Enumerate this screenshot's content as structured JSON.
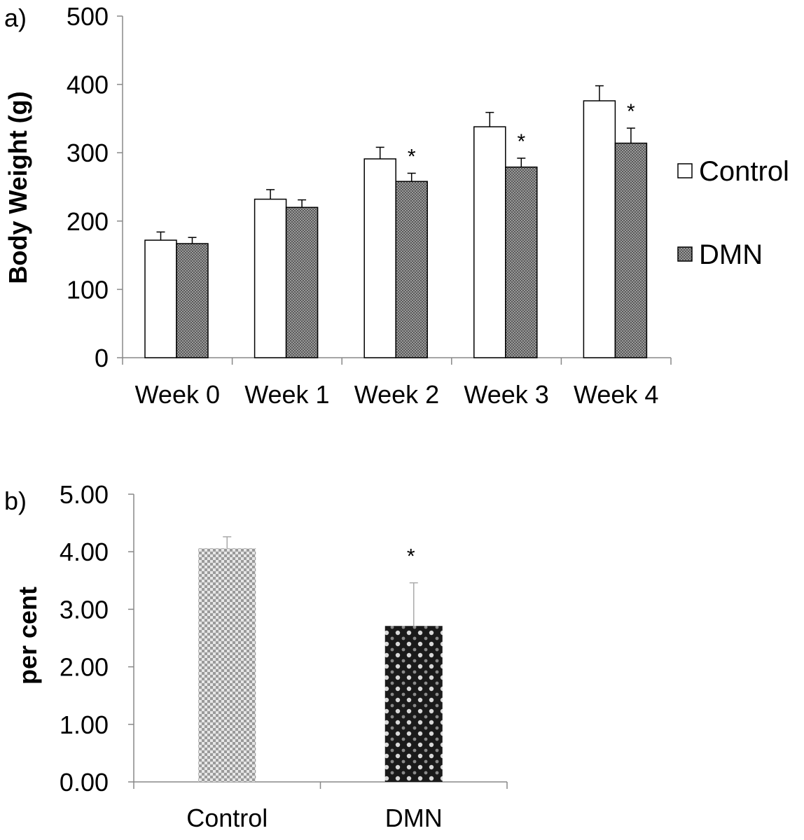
{
  "chart_data": [
    {
      "type": "bar",
      "panel_label": "a)",
      "ylabel": "Body Weight (g)",
      "xlabel": "",
      "ylim": [
        0,
        500
      ],
      "yticks": [
        "0",
        "100",
        "200",
        "300",
        "400",
        "500"
      ],
      "categories": [
        "Week 0",
        "Week 1",
        "Week 2",
        "Week 3",
        "Week 4"
      ],
      "series": [
        {
          "name": "Control",
          "values": [
            172,
            232,
            291,
            338,
            376
          ],
          "errors": [
            12,
            14,
            17,
            21,
            22
          ],
          "fill": "#ffffff"
        },
        {
          "name": "DMN",
          "values": [
            167,
            220,
            258,
            279,
            314
          ],
          "errors": [
            9,
            11,
            12,
            13,
            22
          ],
          "fill": "#8c8c8c"
        }
      ],
      "significance": [
        "",
        "",
        "*",
        "*",
        "*"
      ],
      "legend": {
        "position": "right"
      }
    },
    {
      "type": "bar",
      "panel_label": "b)",
      "ylabel": "per cent",
      "xlabel": "",
      "ylim": [
        0,
        5
      ],
      "yticks": [
        "0.00",
        "1.00",
        "2.00",
        "3.00",
        "4.00",
        "5.00"
      ],
      "categories": [
        "Control",
        "DMN"
      ],
      "values": [
        4.06,
        2.71
      ],
      "errors": [
        0.2,
        0.75
      ],
      "significance": [
        "",
        "*"
      ]
    }
  ]
}
